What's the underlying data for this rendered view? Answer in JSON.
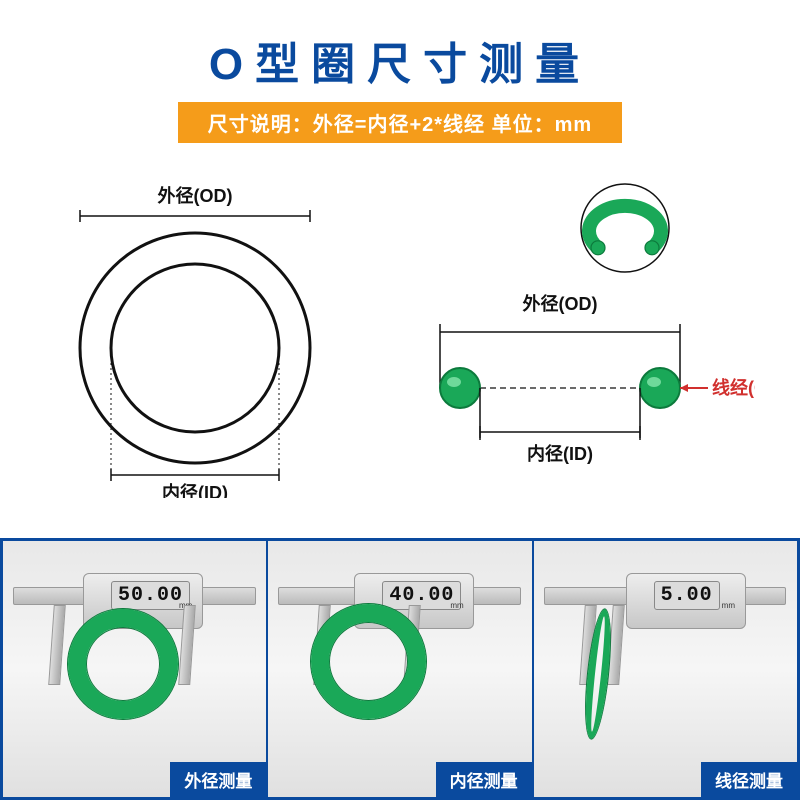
{
  "title": {
    "text": "O型圈尺寸测量",
    "color": "#0a4a9e",
    "fontsize": 44
  },
  "subtitle": {
    "text": "尺寸说明：外径=内径+2*线经  单位：mm",
    "bg": "#f59c1a",
    "color": "#ffffff",
    "fontsize": 20
  },
  "colors": {
    "navy": "#0a4a9e",
    "green": "#1aa858",
    "green_dark": "#0c7a3c",
    "red": "#d1302e",
    "orange": "#f59c1a",
    "black": "#111111",
    "panel_border": "#0a4a9e"
  },
  "diagram_left": {
    "od_label": "外径(OD)",
    "id_label": "内径(ID)",
    "label_color": "#111111",
    "label_fontsize": 18,
    "outer_d": 230,
    "inner_d": 168,
    "stroke": "#111111",
    "stroke_w": 3
  },
  "diagram_right": {
    "od_label": "外径(OD)",
    "id_label": "内径(ID)",
    "cs_label": "线经(CS)",
    "od_color": "#111111",
    "id_color": "#111111",
    "cs_color": "#d1302e",
    "label_fontsize": 18,
    "ring_color": "#1aa858",
    "ring_stroke": "#0c7a3c",
    "cs_circle_d": 40,
    "span": 200
  },
  "gallery": {
    "border_color": "#0a4a9e",
    "caption_bg": "#0a4a9e",
    "items": [
      {
        "caption": "外径测量",
        "reading": "50.00",
        "ring_outer": 110,
        "ring_cs": 18,
        "jaw_gap": 120
      },
      {
        "caption": "内径测量",
        "reading": "40.00",
        "ring_outer": 115,
        "ring_cs": 18,
        "jaw_gap": 80
      },
      {
        "caption": "线径测量",
        "reading": "5.00",
        "ring_outer": 100,
        "ring_cs": 16,
        "jaw_gap": 18
      }
    ]
  }
}
